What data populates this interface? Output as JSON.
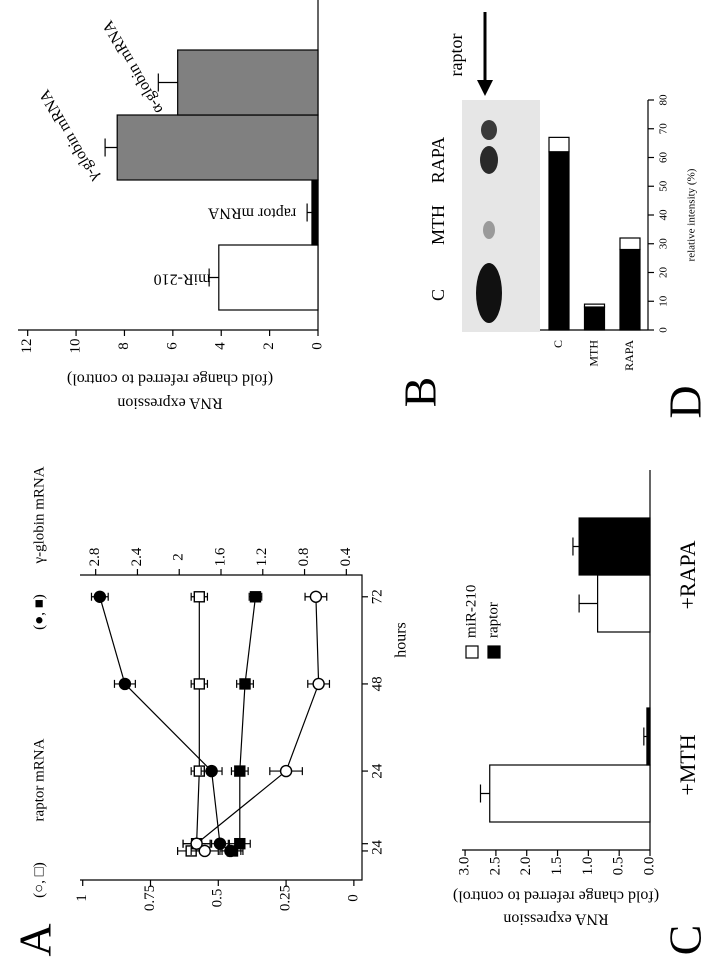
{
  "chart_data": [
    {
      "panel": "A",
      "type": "line",
      "x": [
        2,
        4,
        24,
        48,
        72
      ],
      "xlim": [
        -6,
        78
      ],
      "xticks": [
        2,
        4,
        24,
        48,
        72
      ],
      "x_label": "hours",
      "y_label": "raptor mRNA",
      "y_label_symbols": "(○, □)",
      "y2_label": "γ-globin mRNA",
      "y2_label_symbols": "(●, ■)",
      "ylim": [
        -0.03,
        1.01
      ],
      "yticks": [
        0,
        0.25,
        0.5,
        0.75,
        1
      ],
      "y2lim": [
        0.25,
        2.95
      ],
      "y2ticks": [
        0.4,
        0.8,
        1.2,
        1.6,
        2,
        2.4,
        2.8
      ],
      "series": [
        {
          "marker": "square",
          "color": "#000000",
          "fill": "#ffffff",
          "values": [
            0.6,
            0.58,
            0.57,
            0.57,
            0.57
          ],
          "errors": [
            0.05,
            0.05,
            0.03,
            0.03,
            0.03
          ]
        },
        {
          "marker": "circle",
          "color": "#000000",
          "fill": "#ffffff",
          "values": [
            0.55,
            0.58,
            0.25,
            0.13,
            0.14
          ],
          "errors": [
            0.05,
            0.05,
            0.06,
            0.04,
            0.04
          ]
        },
        {
          "marker": "square",
          "color": "#000000",
          "fill": "#000000",
          "axis": "y2",
          "values": [
            1.49,
            1.42,
            1.42,
            1.37,
            1.27
          ],
          "errors": [
            0.1,
            0.1,
            0.08,
            0.08,
            0.06
          ]
        },
        {
          "marker": "circle",
          "color": "#000000",
          "fill": "#000000",
          "axis": "y2",
          "values": [
            1.51,
            1.61,
            1.69,
            2.52,
            2.76
          ],
          "errors": [
            0.1,
            0.08,
            0.1,
            0.1,
            0.08
          ]
        }
      ]
    },
    {
      "panel": "B",
      "type": "bar",
      "categories": [
        "miR-210",
        "raptor mRNA",
        "γ-globin mRNA",
        "α-globin mRNA"
      ],
      "values": [
        4.1,
        0.25,
        8.3,
        5.8
      ],
      "errors": [
        0.4,
        0.2,
        0.5,
        0.8
      ],
      "colors": [
        "#ffffff",
        "#000000",
        "#808080",
        "#808080"
      ],
      "y_label": "RNA expression",
      "y_sublabel": "(fold change referred to control)",
      "ylim": [
        0,
        12.4
      ],
      "yticks": [
        0,
        2,
        4,
        6,
        8,
        10,
        12
      ]
    },
    {
      "panel": "C",
      "type": "bar",
      "categories": [
        "+MTH",
        "+RAPA"
      ],
      "series": [
        {
          "name": "miR-210",
          "color": "#ffffff",
          "values": [
            2.6,
            0.85
          ],
          "errors": [
            0.15,
            0.3
          ]
        },
        {
          "name": "raptor",
          "color": "#000000",
          "values": [
            0.05,
            1.15
          ],
          "errors": [
            0.05,
            0.1
          ]
        }
      ],
      "y_label": "RNA expression",
      "y_sublabel": "(fold change referred to control)",
      "ylim": [
        0,
        3.05
      ],
      "yticks": [
        {
          "value": 0,
          "label": "0.0"
        },
        {
          "value": 0.5,
          "label": "0.5"
        },
        {
          "value": 1,
          "label": "1.0"
        },
        {
          "value": 1.5,
          "label": "1.5"
        },
        {
          "value": 2,
          "label": "2.0"
        },
        {
          "value": 2.5,
          "label": "2.5"
        },
        {
          "value": 3,
          "label": "3.0"
        }
      ]
    },
    {
      "panel": "D",
      "type": "bar",
      "stacked": true,
      "categories": [
        "C",
        "MTH",
        "RAPA"
      ],
      "series": [
        {
          "color": "#000000",
          "values": [
            62,
            8,
            28
          ]
        },
        {
          "color": "#ffffff",
          "values": [
            5,
            1,
            4
          ]
        }
      ],
      "y_label": "relative intensity (%)",
      "ylim": [
        0,
        80
      ],
      "yticks": [
        0,
        10,
        20,
        30,
        40,
        50,
        60,
        70,
        80
      ],
      "gel_lanes": [
        "C",
        "MTH",
        "RAPA"
      ],
      "gel_band": "raptor"
    }
  ]
}
